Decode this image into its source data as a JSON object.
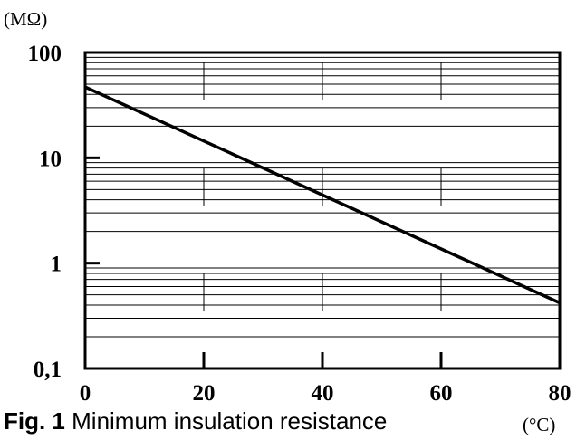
{
  "chart_data": {
    "type": "line",
    "title": "",
    "xlabel": "(°C)",
    "ylabel": "(MΩ)",
    "xlim": [
      0,
      80
    ],
    "ylim": [
      0.1,
      100
    ],
    "yscale": "log",
    "grid": true,
    "x_ticks": [
      0,
      20,
      40,
      60,
      80
    ],
    "x_tick_labels": [
      "0",
      "20",
      "40",
      "60",
      "80"
    ],
    "y_ticks": [
      0.1,
      1,
      10,
      100
    ],
    "y_tick_labels": [
      "0,1",
      "1",
      "10",
      "100"
    ],
    "series": [
      {
        "x": [
          0,
          80
        ],
        "y": [
          47,
          0.42
        ]
      }
    ]
  },
  "caption": {
    "prefix": "Fig. 1",
    "text": "Minimum insulation resistance"
  }
}
